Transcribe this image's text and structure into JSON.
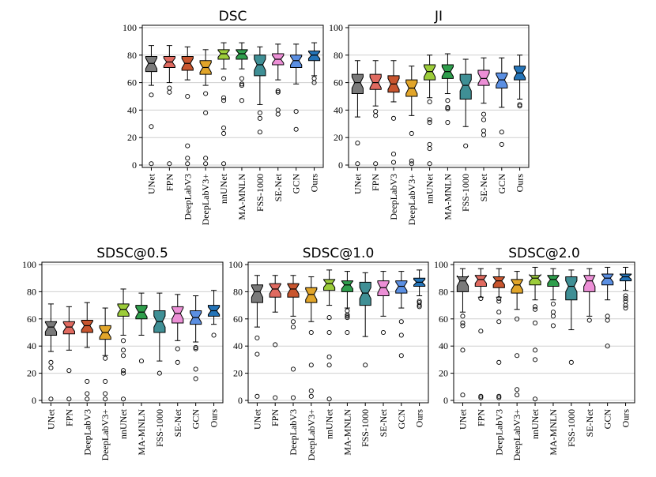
{
  "category_colors": [
    "#7a7a7a",
    "#e06a60",
    "#c8552e",
    "#e1a52a",
    "#9ccc3a",
    "#2f9e4c",
    "#3f8f95",
    "#ec8fd6",
    "#5b8fe2",
    "#2474b8"
  ],
  "chart_data": [
    {
      "type": "box",
      "title": "DSC",
      "xlabel": "",
      "ylabel": "",
      "ylim": [
        0,
        100
      ],
      "yticks": [
        "0",
        "20",
        "40",
        "60",
        "80",
        "100"
      ],
      "grid": true,
      "categories": [
        "UNet",
        "FPN",
        "DeepLabV3",
        "DeepLabV3+",
        "nnUNet",
        "MA-MNLN",
        "FSS-1000",
        "SE-Net",
        "GCN",
        "Ours"
      ],
      "boxes": [
        {
          "q1": 68,
          "median": 74,
          "q3": 79,
          "whisker_low": 58,
          "whisker_high": 87,
          "outliers": [
            51,
            28,
            1
          ]
        },
        {
          "q1": 71,
          "median": 75,
          "q3": 79,
          "whisker_low": 60,
          "whisker_high": 87,
          "outliers": [
            56,
            53,
            1
          ]
        },
        {
          "q1": 69,
          "median": 74,
          "q3": 79,
          "whisker_low": 62,
          "whisker_high": 86,
          "outliers": [
            50,
            14,
            5,
            1
          ]
        },
        {
          "q1": 66,
          "median": 71,
          "q3": 76,
          "whisker_low": 58,
          "whisker_high": 84,
          "outliers": [
            52,
            38,
            5,
            1
          ]
        },
        {
          "q1": 77,
          "median": 81,
          "q3": 84,
          "whisker_low": 70,
          "whisker_high": 89,
          "outliers": [
            63,
            49,
            47,
            27,
            23,
            1
          ]
        },
        {
          "q1": 77,
          "median": 81,
          "q3": 84,
          "whisker_low": 70,
          "whisker_high": 89,
          "outliers": [
            63,
            59,
            58,
            47
          ]
        },
        {
          "q1": 65,
          "median": 73,
          "q3": 80,
          "whisker_low": 44,
          "whisker_high": 86,
          "outliers": [
            38,
            34,
            24
          ]
        },
        {
          "q1": 73,
          "median": 77,
          "q3": 81,
          "whisker_low": 62,
          "whisker_high": 88,
          "outliers": [
            54,
            53,
            40,
            37
          ]
        },
        {
          "q1": 71,
          "median": 76,
          "q3": 80,
          "whisker_low": 59,
          "whisker_high": 88,
          "outliers": [
            39,
            26
          ]
        },
        {
          "q1": 76,
          "median": 80,
          "q3": 83,
          "whisker_low": 65,
          "whisker_high": 89,
          "outliers": [
            63,
            60
          ]
        }
      ]
    },
    {
      "type": "box",
      "title": "JI",
      "xlabel": "",
      "ylabel": "",
      "ylim": [
        0,
        100
      ],
      "yticks": [
        "0",
        "20",
        "40",
        "60",
        "80",
        "100"
      ],
      "grid": true,
      "categories": [
        "UNet",
        "FPN",
        "DeepLabV3",
        "DeepLabV3+",
        "nnUNet",
        "MA-MNLN",
        "FSS-1000",
        "SE-Net",
        "GCN",
        "Ours"
      ],
      "boxes": [
        {
          "q1": 52,
          "median": 60,
          "q3": 66,
          "whisker_low": 35,
          "whisker_high": 76,
          "outliers": [
            16,
            1
          ]
        },
        {
          "q1": 55,
          "median": 60,
          "q3": 66,
          "whisker_low": 43,
          "whisker_high": 76,
          "outliers": [
            39,
            36,
            1
          ]
        },
        {
          "q1": 53,
          "median": 59,
          "q3": 65,
          "whisker_low": 46,
          "whisker_high": 76,
          "outliers": [
            34,
            8,
            2
          ]
        },
        {
          "q1": 50,
          "median": 56,
          "q3": 62,
          "whisker_low": 36,
          "whisker_high": 72,
          "outliers": [
            23,
            3,
            1
          ]
        },
        {
          "q1": 62,
          "median": 68,
          "q3": 73,
          "whisker_low": 49,
          "whisker_high": 80,
          "outliers": [
            46,
            33,
            31,
            15,
            12,
            1
          ]
        },
        {
          "q1": 63,
          "median": 68,
          "q3": 73,
          "whisker_low": 52,
          "whisker_high": 81,
          "outliers": [
            47,
            42,
            41,
            31
          ]
        },
        {
          "q1": 48,
          "median": 58,
          "q3": 66,
          "whisker_low": 28,
          "whisker_high": 77,
          "outliers": [
            14
          ]
        },
        {
          "q1": 58,
          "median": 63,
          "q3": 69,
          "whisker_low": 45,
          "whisker_high": 78,
          "outliers": [
            37,
            33,
            25,
            22
          ]
        },
        {
          "q1": 56,
          "median": 62,
          "q3": 67,
          "whisker_low": 42,
          "whisker_high": 78,
          "outliers": [
            24,
            15
          ]
        },
        {
          "q1": 62,
          "median": 67,
          "q3": 72,
          "whisker_low": 48,
          "whisker_high": 80,
          "outliers": [
            44,
            43
          ]
        }
      ]
    },
    {
      "type": "box",
      "title": "SDSC@0.5",
      "xlabel": "",
      "ylabel": "",
      "ylim": [
        0,
        100
      ],
      "yticks": [
        "0",
        "20",
        "40",
        "60",
        "80",
        "100"
      ],
      "grid": true,
      "categories": [
        "UNet",
        "FPN",
        "DeepLabV3",
        "DeepLabV3+",
        "nnUNet",
        "MA-MNLN",
        "FSS-1000",
        "SE-Net",
        "GCN",
        "Ours"
      ],
      "boxes": [
        {
          "q1": 48,
          "median": 54,
          "q3": 58,
          "whisker_low": 36,
          "whisker_high": 71,
          "outliers": [
            28,
            24,
            1
          ]
        },
        {
          "q1": 49,
          "median": 54,
          "q3": 58,
          "whisker_low": 37,
          "whisker_high": 69,
          "outliers": [
            22,
            1
          ]
        },
        {
          "q1": 50,
          "median": 55,
          "q3": 59,
          "whisker_low": 39,
          "whisker_high": 72,
          "outliers": [
            14,
            5,
            1
          ]
        },
        {
          "q1": 45,
          "median": 50,
          "q3": 55,
          "whisker_low": 33,
          "whisker_high": 68,
          "outliers": [
            31,
            14,
            5,
            1
          ]
        },
        {
          "q1": 62,
          "median": 67,
          "q3": 71,
          "whisker_low": 48,
          "whisker_high": 82,
          "outliers": [
            44,
            37,
            33,
            22,
            20,
            1
          ]
        },
        {
          "q1": 60,
          "median": 65,
          "q3": 70,
          "whisker_low": 48,
          "whisker_high": 79,
          "outliers": [
            29
          ]
        },
        {
          "q1": 50,
          "median": 58,
          "q3": 66,
          "whisker_low": 29,
          "whisker_high": 79,
          "outliers": [
            20
          ]
        },
        {
          "q1": 57,
          "median": 64,
          "q3": 69,
          "whisker_low": 44,
          "whisker_high": 78,
          "outliers": [
            38,
            28
          ]
        },
        {
          "q1": 56,
          "median": 61,
          "q3": 66,
          "whisker_low": 43,
          "whisker_high": 77,
          "outliers": [
            39,
            38,
            23,
            16
          ]
        },
        {
          "q1": 62,
          "median": 66,
          "q3": 70,
          "whisker_low": 56,
          "whisker_high": 81,
          "outliers": [
            48
          ]
        }
      ]
    },
    {
      "type": "box",
      "title": "SDSC@1.0",
      "xlabel": "",
      "ylabel": "",
      "ylim": [
        0,
        100
      ],
      "yticks": [
        "0",
        "20",
        "40",
        "60",
        "80",
        "100"
      ],
      "grid": true,
      "categories": [
        "UNet",
        "FPN",
        "DeepLabV3",
        "DeepLabV3+",
        "nnUNet",
        "MA-MNLN",
        "FSS-1000",
        "SE-Net",
        "GCN",
        "Ours"
      ],
      "boxes": [
        {
          "q1": 72,
          "median": 80,
          "q3": 85,
          "whisker_low": 54,
          "whisker_high": 92,
          "outliers": [
            46,
            34,
            3
          ]
        },
        {
          "q1": 76,
          "median": 82,
          "q3": 86,
          "whisker_low": 65,
          "whisker_high": 92,
          "outliers": [
            41,
            2
          ]
        },
        {
          "q1": 76,
          "median": 82,
          "q3": 86,
          "whisker_low": 62,
          "whisker_high": 92,
          "outliers": [
            58,
            54,
            23,
            2
          ]
        },
        {
          "q1": 72,
          "median": 78,
          "q3": 83,
          "whisker_low": 58,
          "whisker_high": 91,
          "outliers": [
            50,
            26,
            7,
            3
          ]
        },
        {
          "q1": 81,
          "median": 86,
          "q3": 89,
          "whisker_low": 70,
          "whisker_high": 96,
          "outliers": [
            61,
            50,
            32,
            26,
            1
          ]
        },
        {
          "q1": 80,
          "median": 85,
          "q3": 88,
          "whisker_low": 68,
          "whisker_high": 95,
          "outliers": [
            66,
            63,
            62,
            61,
            50
          ]
        },
        {
          "q1": 70,
          "median": 79,
          "q3": 87,
          "whisker_low": 47,
          "whisker_high": 94,
          "outliers": [
            26
          ]
        },
        {
          "q1": 77,
          "median": 83,
          "q3": 88,
          "whisker_low": 62,
          "whisker_high": 95,
          "outliers": [
            50
          ]
        },
        {
          "q1": 79,
          "median": 84,
          "q3": 88,
          "whisker_low": 68,
          "whisker_high": 95,
          "outliers": [
            58,
            48,
            33
          ]
        },
        {
          "q1": 84,
          "median": 87,
          "q3": 90,
          "whisker_low": 77,
          "whisker_high": 96,
          "outliers": [
            73,
            72,
            70,
            69
          ]
        }
      ]
    },
    {
      "type": "box",
      "title": "SDSC@2.0",
      "xlabel": "",
      "ylabel": "",
      "ylim": [
        0,
        100
      ],
      "yticks": [
        "0",
        "20",
        "40",
        "60",
        "80",
        "100"
      ],
      "grid": true,
      "categories": [
        "UNet",
        "FPN",
        "DeepLabV3",
        "DeepLabV3+",
        "nnUNet",
        "MA-MNLN",
        "FSS-1000",
        "SE-Net",
        "GCN",
        "Ours"
      ],
      "boxes": [
        {
          "q1": 80,
          "median": 88,
          "q3": 91,
          "whisker_low": 65,
          "whisker_high": 97,
          "outliers": [
            62,
            57,
            55,
            37,
            4
          ]
        },
        {
          "q1": 84,
          "median": 89,
          "q3": 92,
          "whisker_low": 76,
          "whisker_high": 97,
          "outliers": [
            75,
            51,
            3,
            2
          ]
        },
        {
          "q1": 83,
          "median": 88,
          "q3": 91,
          "whisker_low": 76,
          "whisker_high": 97,
          "outliers": [
            75,
            73,
            65,
            58,
            28,
            3,
            2
          ]
        },
        {
          "q1": 79,
          "median": 85,
          "q3": 89,
          "whisker_low": 67,
          "whisker_high": 95,
          "outliers": [
            60,
            33,
            8,
            4
          ]
        },
        {
          "q1": 85,
          "median": 90,
          "q3": 92,
          "whisker_low": 74,
          "whisker_high": 98,
          "outliers": [
            69,
            67,
            57,
            37,
            30,
            1
          ]
        },
        {
          "q1": 84,
          "median": 89,
          "q3": 92,
          "whisker_low": 74,
          "whisker_high": 97,
          "outliers": [
            71,
            65,
            62,
            55
          ]
        },
        {
          "q1": 74,
          "median": 84,
          "q3": 91,
          "whisker_low": 52,
          "whisker_high": 96,
          "outliers": [
            28
          ]
        },
        {
          "q1": 80,
          "median": 88,
          "q3": 92,
          "whisker_low": 62,
          "whisker_high": 97,
          "outliers": [
            59
          ]
        },
        {
          "q1": 85,
          "median": 90,
          "q3": 93,
          "whisker_low": 74,
          "whisker_high": 98,
          "outliers": [
            62,
            59,
            40
          ]
        },
        {
          "q1": 88,
          "median": 91,
          "q3": 93,
          "whisker_low": 81,
          "whisker_high": 98,
          "outliers": [
            77,
            75,
            73,
            70,
            68
          ]
        }
      ]
    }
  ]
}
